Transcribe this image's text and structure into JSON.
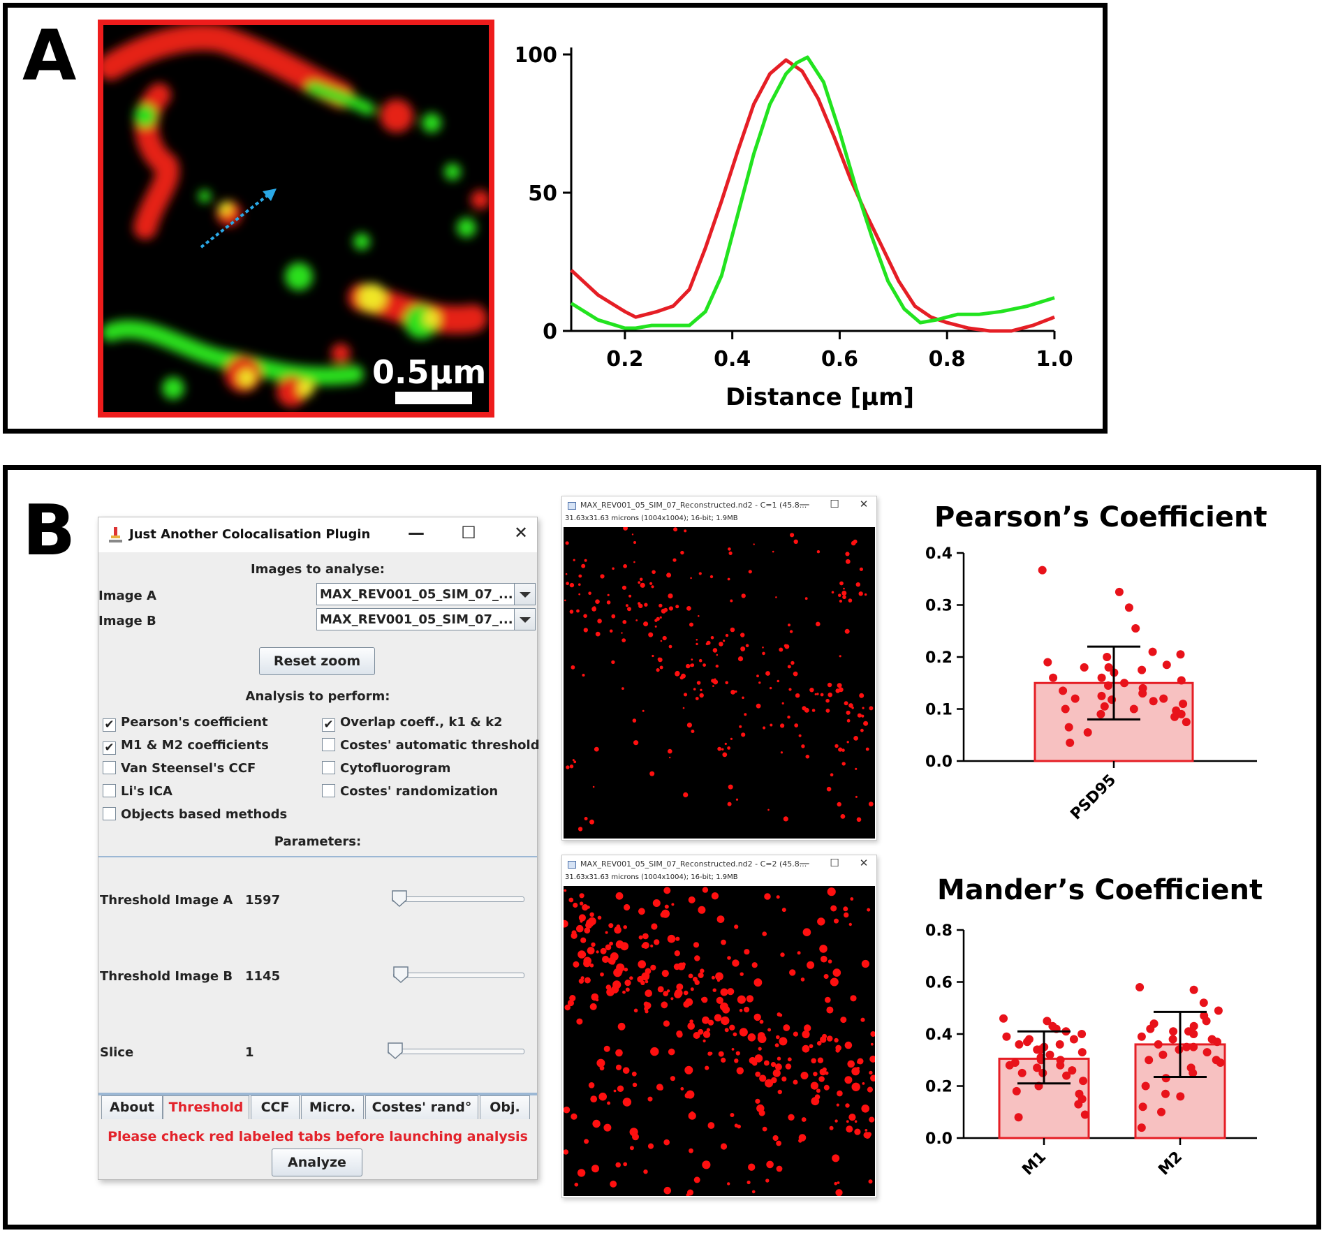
{
  "panel_a": {
    "letter": "A",
    "scale_bar_label": "0.5µm",
    "chart_data": {
      "type": "line",
      "title": "",
      "xlabel": "Distance [µm]",
      "ylabel": "",
      "xlim": [
        0.1,
        1.0
      ],
      "ylim": [
        0,
        100
      ],
      "x_ticks": [
        "0.2",
        "0.4",
        "0.6",
        "0.8",
        "1.0"
      ],
      "y_ticks": [
        "0",
        "50",
        "100"
      ],
      "series": [
        {
          "color": "#e51e25",
          "x": [
            0.1,
            0.15,
            0.2,
            0.22,
            0.26,
            0.29,
            0.32,
            0.35,
            0.38,
            0.41,
            0.44,
            0.47,
            0.5,
            0.53,
            0.56,
            0.59,
            0.62,
            0.65,
            0.68,
            0.71,
            0.74,
            0.77,
            0.8,
            0.84,
            0.88,
            0.92,
            0.96,
            1.0
          ],
          "y": [
            22,
            13,
            7,
            5,
            7,
            9,
            15,
            30,
            47,
            65,
            82,
            93,
            98,
            94,
            84,
            70,
            55,
            42,
            30,
            18,
            9,
            5,
            3,
            1,
            0,
            0,
            2,
            5
          ]
        },
        {
          "color": "#22e31f",
          "x": [
            0.1,
            0.15,
            0.2,
            0.22,
            0.25,
            0.28,
            0.3,
            0.32,
            0.35,
            0.38,
            0.41,
            0.44,
            0.47,
            0.5,
            0.52,
            0.54,
            0.57,
            0.6,
            0.63,
            0.66,
            0.69,
            0.72,
            0.75,
            0.78,
            0.82,
            0.86,
            0.9,
            0.95,
            1.0
          ],
          "y": [
            10,
            4,
            1,
            1,
            2,
            2,
            2,
            2,
            7,
            20,
            42,
            64,
            82,
            93,
            97,
            99,
            90,
            72,
            52,
            34,
            18,
            8,
            3,
            4,
            6,
            6,
            7,
            9,
            12
          ]
        }
      ]
    }
  },
  "panel_b": {
    "letter": "B",
    "plugin": {
      "title": "Just Another Colocalisation Plugin",
      "minimize": "—",
      "maximize": "☐",
      "close": "✕",
      "images_header": "Images to analyse:",
      "image_a_label": "Image A",
      "image_a_value": "MAX_REV001_05_SIM_07_...",
      "image_b_label": "Image B",
      "image_b_value": "MAX_REV001_05_SIM_07_...",
      "reset_zoom": "Reset zoom",
      "analysis_header": "Analysis to perform:",
      "checks": [
        {
          "label": "Pearson's coefficient",
          "checked": true
        },
        {
          "label": "Overlap coeff., k1 & k2",
          "checked": true
        },
        {
          "label": "M1 & M2 coefficients",
          "checked": true
        },
        {
          "label": "Costes' automatic threshold",
          "checked": false
        },
        {
          "label": "Van Steensel's CCF",
          "checked": false
        },
        {
          "label": "Cytofluorogram",
          "checked": false
        },
        {
          "label": "Li's ICA",
          "checked": false
        },
        {
          "label": "Costes' randomization",
          "checked": false
        },
        {
          "label": "Objects based methods",
          "checked": false
        }
      ],
      "check_mark": "✔",
      "parameters_header": "Parameters:",
      "threshold_a_label": "Threshold Image A",
      "threshold_a_value": "1597",
      "threshold_b_label": "Threshold Image B",
      "threshold_b_value": "1145",
      "slice_label": "Slice",
      "slice_value": "1",
      "tabs": [
        "About",
        "Threshold",
        "CCF",
        "Micro.",
        "Costes' rand°",
        "Obj."
      ],
      "active_tab": "Threshold",
      "warning": "Please check red labeled tabs before launching analysis",
      "analyze": "Analyze"
    },
    "image_window_1": {
      "title": "MAX_REV001_05_SIM_07_Reconstructed.nd2 - C=1 (45.8...",
      "info": "31.63x31.63 microns (1004x1004); 16-bit; 1.9MB",
      "minimize": "—",
      "maximize": "☐",
      "close": "✕"
    },
    "image_window_2": {
      "title": "MAX_REV001_05_SIM_07_Reconstructed.nd2 - C=2 (45.8...",
      "info": "31.63x31.63 microns (1004x1004); 16-bit; 1.9MB",
      "minimize": "—",
      "maximize": "☐",
      "close": "✕"
    },
    "pearson_title": "Pearson’s Coefficient",
    "mander_title": "Mander’s Coefficient",
    "chart_data": [
      {
        "type": "bar",
        "title": "Pearson’s Coefficient",
        "categories": [
          "PSD95"
        ],
        "values": [
          0.15
        ],
        "error_bars": [
          [
            0.08,
            0.22
          ]
        ],
        "ylim": [
          0,
          0.4
        ],
        "y_ticks": [
          "0.0",
          "0.1",
          "0.2",
          "0.3",
          "0.4"
        ],
        "points": [
          [
            0.367,
            0.325,
            0.295,
            0.255,
            0.21,
            0.205,
            0.19,
            0.185,
            0.18,
            0.175,
            0.17,
            0.16,
            0.155,
            0.15,
            0.145,
            0.14,
            0.135,
            0.13,
            0.125,
            0.12,
            0.118,
            0.115,
            0.11,
            0.105,
            0.1,
            0.097,
            0.09,
            0.085,
            0.075,
            0.065,
            0.055,
            0.035,
            0.2,
            0.18,
            0.16,
            0.12,
            0.1,
            0.09
          ]
        ]
      },
      {
        "type": "bar",
        "title": "Mander’s Coefficient",
        "categories": [
          "M1",
          "M2"
        ],
        "values": [
          0.305,
          0.36
        ],
        "error_bars": [
          [
            0.21,
            0.41
          ],
          [
            0.235,
            0.485
          ]
        ],
        "ylim": [
          0,
          0.8
        ],
        "y_ticks": [
          "0.0",
          "0.2",
          "0.4",
          "0.6",
          "0.8"
        ],
        "points": [
          [
            0.46,
            0.45,
            0.43,
            0.42,
            0.41,
            0.4,
            0.39,
            0.38,
            0.37,
            0.36,
            0.35,
            0.34,
            0.33,
            0.32,
            0.31,
            0.3,
            0.29,
            0.28,
            0.27,
            0.26,
            0.25,
            0.24,
            0.22,
            0.2,
            0.18,
            0.17,
            0.15,
            0.13,
            0.09,
            0.08,
            0.38,
            0.36,
            0.34,
            0.3,
            0.28,
            0.25
          ],
          [
            0.58,
            0.57,
            0.52,
            0.49,
            0.47,
            0.45,
            0.43,
            0.42,
            0.41,
            0.4,
            0.39,
            0.38,
            0.37,
            0.36,
            0.35,
            0.34,
            0.33,
            0.32,
            0.3,
            0.29,
            0.27,
            0.25,
            0.23,
            0.2,
            0.17,
            0.16,
            0.12,
            0.1,
            0.04,
            0.44,
            0.41,
            0.38,
            0.35,
            0.3
          ]
        ]
      }
    ]
  }
}
